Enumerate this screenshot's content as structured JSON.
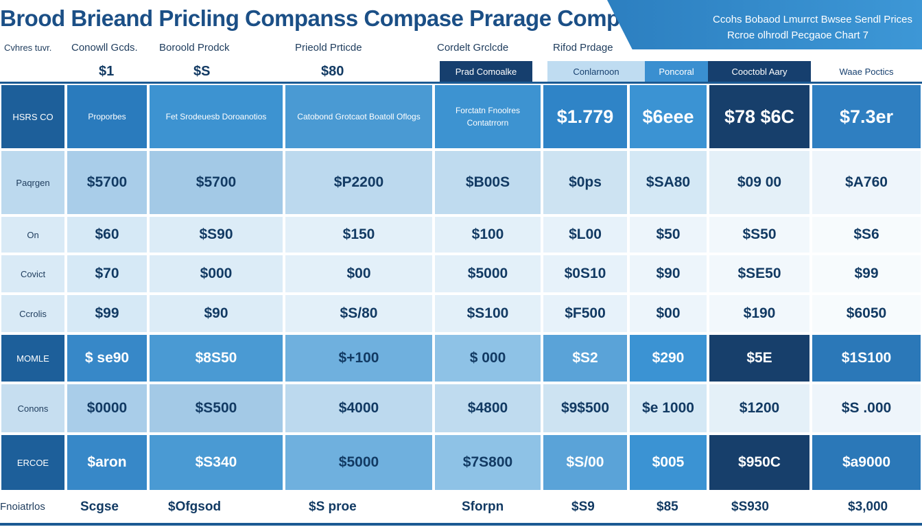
{
  "title": "Brood Brieand Pricling Companss Compase Prarage Compase Chart",
  "banner": {
    "line1": "Ccohs Bobaod Lmurrct Bwsee Sendl Prices",
    "line2": "Rcroe olhrodl Pecgaoe Chart 7"
  },
  "header_labels": [
    "Cvhres tuvr.",
    "Conowll Gcds.",
    "Boroold Prodck",
    "Prieold Prticde",
    "Cordelt Grclcde",
    "Rifod Prdage"
  ],
  "header_prices": [
    "$1",
    "$S",
    "$80"
  ],
  "header_pills": [
    "Prad Comoalke",
    "Conlarnoon",
    "Poncoral",
    "Cooctobl Aary",
    "Waae Poctics"
  ],
  "chart_data": {
    "type": "table",
    "title": "Brood Brieand Pricling Companss Compase Prarage Compase Chart",
    "columns": [
      "Fstj Srodeuesb Doroanotios",
      "Catobond Grotcaot Boatoll Oflogs",
      "Forctatn Fnoolres Contatrrorn"
    ],
    "header_row": {
      "label": "HSRS CO",
      "cells": [
        "Proporbes",
        "Fet Srodeuesb Doroanotios",
        "Catobond Grotcaot Boatoll Oflogs",
        "Forctatn Fnoolres Contatrrorn",
        "$1.779",
        "$6eee",
        "$78 $6C",
        "$7.3er"
      ]
    },
    "rows": [
      {
        "label": "Paqrgen",
        "values": [
          "$5700",
          "$5700",
          "$P2200",
          "$B00S",
          "$0ps",
          "$SA80",
          "$09 00",
          "$A760"
        ]
      },
      {
        "label": "On",
        "values": [
          "$60",
          "$S90",
          "$150",
          "$100",
          "$L00",
          "$50",
          "$S50",
          "$S6"
        ]
      },
      {
        "label": "Covict",
        "values": [
          "$70",
          "$000",
          "$00",
          "$5000",
          "$0S10",
          "$90",
          "$SE50",
          "$99"
        ]
      },
      {
        "label": "Ccrolis",
        "values": [
          "$99",
          "$90",
          "$S/80",
          "$S100",
          "$F500",
          "$00",
          "$190",
          "$6050"
        ]
      },
      {
        "label": "MOMLE",
        "values": [
          "$ se90",
          "$8S50",
          "$+100",
          "$ 000",
          "$S2",
          "$290",
          "$5E",
          "$1S100"
        ]
      },
      {
        "label": "Conons",
        "values": [
          "$0000",
          "$S500",
          "$4000",
          "$4800",
          "$9$500",
          "$e 1000",
          "$1200",
          "$S .000"
        ]
      },
      {
        "label": "ERCOE",
        "values": [
          "$aron",
          "$S340",
          "$5000",
          "$7S800",
          "$S/00",
          "$005",
          "$950C",
          "$a9000"
        ]
      }
    ],
    "footer": {
      "label": "Fnoiatrlos",
      "values": [
        "Scgse",
        "$Ofgsod",
        "$S proe",
        "Sforpn",
        "$S9",
        "$85",
        "$S930",
        "$3,000"
      ]
    }
  }
}
